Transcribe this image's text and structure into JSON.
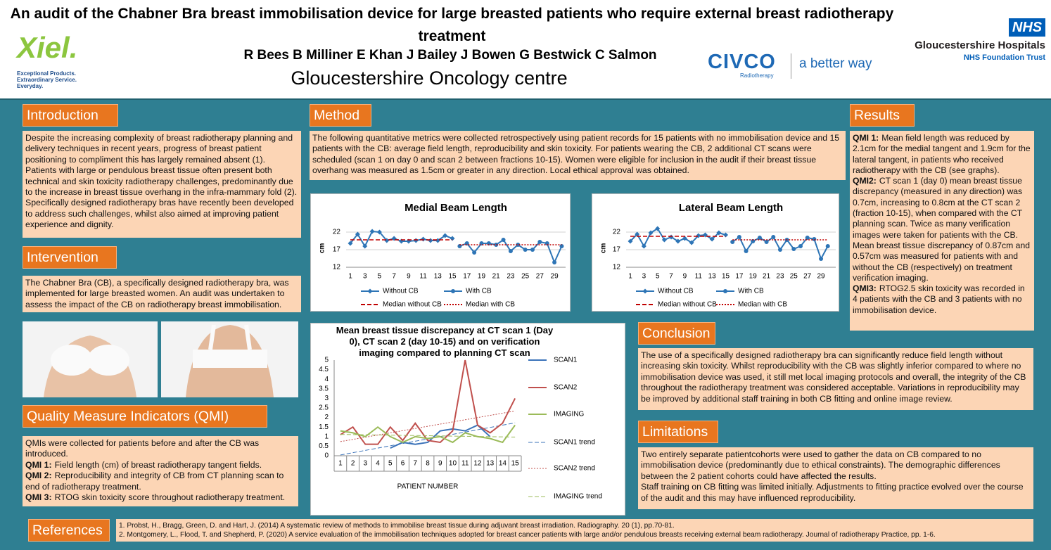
{
  "header": {
    "title": "An audit of the Chabner Bra breast immobilisation device for large breasted patients who require external breast radiotherapy treatment",
    "authors": "R Bees B Milliner E Khan J Bailey J Bowen G Bestwick C Salmon",
    "centre": "Gloucestershire Oncology centre"
  },
  "logos": {
    "xiel": "Xiel.",
    "xiel_tagline": "Exceptional Products. Extraordinary Service. Everyday.",
    "civco": "CIVCO",
    "civco_sub": "Radiotherapy",
    "civco_slogan": "a better way",
    "nhs": "NHS",
    "trust": "Gloucestershire Hospitals",
    "trust_sub": "NHS Foundation Trust"
  },
  "introduction": {
    "heading": "Introduction",
    "text": "Despite the increasing complexity of breast radiotherapy planning and delivery techniques in recent years, progress of breast patient positioning to compliment this has largely remained absent (1). Patients with large or pendulous breast tissue often present both technical and skin toxicity radiotherapy challenges, predominantly due to the increase in breast tissue overhang in the infra-mammary fold (2). Specifically designed radiotherapy bras have recently been developed to address such challenges, whilst also aimed at improving patient experience and dignity."
  },
  "intervention": {
    "heading": "Intervention",
    "text": "The Chabner Bra (CB), a specifically designed radiotherapy bra, was implemented for large breasted women. An audit was undertaken to assess the impact of the CB on radiotherapy breast immobilisation."
  },
  "qmi": {
    "heading": "Quality Measure Indicators (QMI)",
    "intro": "QMIs were collected for patients before and after the CB was introduced.",
    "items": [
      {
        "label": "QMI 1:",
        "text": "Field length (cm) of breast radiotherapy tangent fields."
      },
      {
        "label": "QMI 2:",
        "text": "Reproducibility and integrity of CB from CT planning scan to end of radiotherapy treatment."
      },
      {
        "label": "QMI 3:",
        "text": "RTOG skin toxicity score throughout radiotherapy treatment."
      }
    ]
  },
  "references": {
    "heading": "References",
    "items": [
      "1. Probst, H., Bragg, Green, D. and Hart, J. (2014) A systematic review of methods to immobilise breast tissue during adjuvant breast irradiation. Radiography. 20 (1), pp.70-81.",
      "2. Montgomery, L., Flood, T. and Shepherd, P. (2020) A service evaluation of the immobilisation techniques adopted for breast cancer patients with large and/or pendulous breasts receiving external beam radiotherapy. Journal of radiotherapy Practice, pp. 1-6."
    ]
  },
  "method": {
    "heading": "Method",
    "text": "The following quantitative metrics were collected retrospectively using patient records for 15 patients with no immobilisation device and 15 patients with the CB: average field length, reproducibility and skin toxicity. For patients wearing the CB, 2 additional CT scans were scheduled (scan 1 on day 0 and scan 2 between fractions 10-15). Women were eligible for inclusion in the audit if their breast tissue overhang was measured as 1.5cm or greater in any direction. Local ethical approval was obtained."
  },
  "results": {
    "heading": "Results",
    "items": [
      {
        "label": "QMI 1:",
        "text": "Mean field length was reduced by 2.1cm for the medial tangent and 1.9cm for the lateral tangent, in  patients who received radiotherapy with the CB (see graphs)."
      },
      {
        "label": "QMI2:",
        "text": "CT scan 1 (day 0) mean breast tissue discrepancy (measured in any direction) was 0.7cm, increasing to 0.8cm at the CT scan 2 (fraction 10-15), when compared with the CT planning scan. Twice as many verification images were taken for patients with the CB. Mean breast tissue discrepancy of 0.87cm and 0.57cm was measured for patients with and without the CB (respectively) on treatment verification imaging."
      },
      {
        "label": "QMI3:",
        "text": "RTOG2.5 skin toxicity was recorded in 4 patients with the CB and 3 patients with no immobilisation  device."
      }
    ]
  },
  "conclusion": {
    "heading": "Conclusion",
    "text": "The use of a specifically designed radiotherapy bra can significantly reduce field length without increasing skin toxicity. Whilst reproducibility with the CB was slightly inferior compared to where no immobilisation device was used, it still met local imaging protocols and overall, the integrity of the CB throughout the radiotherapy treatment was considered acceptable. Variations in reproducibility may be improved by additional staff training in both CB fitting and online image review."
  },
  "limitations": {
    "heading": "Limitations",
    "paragraphs": [
      "Two entirely separate  patientcohorts were used to gather the data on CB compared to no immobilisation device (predominantly due to ethical constraints). The demographic differences between the 2 patient cohorts could have affected the results.",
      "Staff training on CB fitting was limited initially. Adjustments to fitting practice evolved over the course of the audit and this may have influenced reproducibility."
    ]
  },
  "chart_data": [
    {
      "type": "line",
      "title": "Medial Beam Length",
      "ylabel": "cm",
      "ylim": [
        12,
        24
      ],
      "yticks": [
        12,
        17,
        22
      ],
      "grid": true,
      "categories": [
        1,
        null,
        3,
        null,
        5,
        null,
        7,
        null,
        9,
        null,
        11,
        null,
        13,
        null,
        15,
        null,
        17,
        null,
        19,
        null,
        21,
        null,
        23,
        null,
        25,
        null,
        27,
        null,
        29,
        null
      ],
      "series": [
        {
          "name": "Without CB",
          "color": "#2e75b6",
          "marker": "diamond",
          "dash": "solid",
          "values": [
            18.8,
            21.4,
            18,
            22.2,
            22,
            19.6,
            20.2,
            19.4,
            19.4,
            19.6,
            20,
            19.6,
            19.6,
            21,
            20.2,
            null,
            null,
            null,
            null,
            null,
            null,
            null,
            null,
            null,
            null,
            null,
            null,
            null,
            null,
            null
          ]
        },
        {
          "name": "With CB",
          "color": "#2e75b6",
          "marker": "circle",
          "dash": "solid",
          "values": [
            null,
            null,
            null,
            null,
            null,
            null,
            null,
            null,
            null,
            null,
            null,
            null,
            null,
            null,
            null,
            18,
            18.8,
            16.2,
            18.8,
            18.8,
            18.4,
            19.8,
            16.6,
            18.4,
            17,
            17,
            19.2,
            18.8,
            13.4,
            18
          ]
        },
        {
          "name": "Median without CB",
          "color": "#c00000",
          "marker": "none",
          "dash": "dashed",
          "values": [
            19.8,
            19.8,
            19.8,
            19.8,
            19.8,
            19.8,
            19.8,
            19.8,
            19.8,
            19.8,
            19.8,
            19.8,
            19.8,
            19.8,
            19.8,
            null,
            null,
            null,
            null,
            null,
            null,
            null,
            null,
            null,
            null,
            null,
            null,
            null,
            null,
            null
          ]
        },
        {
          "name": "Median with CB",
          "color": "#c00000",
          "marker": "none",
          "dash": "dotted",
          "values": [
            null,
            null,
            null,
            null,
            null,
            null,
            null,
            null,
            null,
            null,
            null,
            null,
            null,
            null,
            null,
            18.4,
            18.4,
            18.4,
            18.4,
            18.4,
            18.4,
            18.4,
            18.4,
            18.4,
            18.4,
            18.4,
            18.4,
            18.4,
            18.4,
            18.4
          ]
        }
      ]
    },
    {
      "type": "line",
      "title": "Lateral Beam Length",
      "ylabel": "cm",
      "ylim": [
        12,
        24
      ],
      "yticks": [
        12,
        17,
        22
      ],
      "grid": true,
      "categories": [
        1,
        null,
        3,
        null,
        5,
        null,
        7,
        null,
        9,
        null,
        11,
        null,
        13,
        null,
        15,
        null,
        17,
        null,
        19,
        null,
        21,
        null,
        23,
        null,
        25,
        null,
        27,
        null,
        29,
        null
      ],
      "series": [
        {
          "name": "Without CB",
          "color": "#2e75b6",
          "marker": "diamond",
          "dash": "solid",
          "values": [
            19.4,
            21.4,
            18,
            21.8,
            23,
            19.8,
            20.6,
            19.4,
            20.2,
            19,
            21,
            21.2,
            20,
            21.8,
            21.2,
            null,
            null,
            null,
            null,
            null,
            null,
            null,
            null,
            null,
            null,
            null,
            null,
            null,
            null,
            null
          ]
        },
        {
          "name": "With CB",
          "color": "#2e75b6",
          "marker": "circle",
          "dash": "solid",
          "values": [
            null,
            null,
            null,
            null,
            null,
            null,
            null,
            null,
            null,
            null,
            null,
            null,
            null,
            null,
            null,
            19.2,
            20.6,
            16.6,
            19.4,
            20.4,
            19.2,
            20.6,
            17,
            19.8,
            17.2,
            18,
            20.4,
            20,
            14.4,
            18
          ]
        },
        {
          "name": "Median without CB",
          "color": "#c00000",
          "marker": "none",
          "dash": "dashed",
          "values": [
            20.8,
            20.8,
            20.8,
            20.8,
            20.8,
            20.8,
            20.8,
            20.8,
            20.8,
            20.8,
            20.8,
            20.8,
            20.8,
            20.8,
            20.8,
            null,
            null,
            null,
            null,
            null,
            null,
            null,
            null,
            null,
            null,
            null,
            null,
            null,
            null,
            null
          ]
        },
        {
          "name": "Median with CB",
          "color": "#c00000",
          "marker": "none",
          "dash": "dotted",
          "values": [
            null,
            null,
            null,
            null,
            null,
            null,
            null,
            null,
            null,
            null,
            null,
            null,
            null,
            null,
            null,
            19.8,
            19.8,
            19.8,
            19.8,
            19.8,
            19.8,
            19.8,
            19.8,
            19.8,
            19.8,
            19.8,
            19.8,
            19.8,
            19.8,
            19.8
          ]
        }
      ]
    },
    {
      "type": "line",
      "title": "Mean breast tissue discrepancy at CT scan 1 (Day 0), CT scan 2 (day 10-15) and on verification imaging compared to planning CT scan",
      "xlabel": "PATIENT NUMBER",
      "ylim": [
        0,
        5
      ],
      "yticks": [
        0,
        0.5,
        1,
        1.5,
        2,
        2.5,
        3,
        3.5,
        4,
        4.5,
        5
      ],
      "grid": false,
      "categories": [
        1,
        2,
        3,
        4,
        5,
        6,
        7,
        8,
        9,
        10,
        11,
        12,
        13,
        14,
        15
      ],
      "series": [
        {
          "name": "SCAN1",
          "color": "#3b73b9",
          "marker": "none",
          "dash": "solid",
          "trend_name": "SCAN1 trend",
          "trend_dash": "dashed",
          "values": [
            null,
            null,
            null,
            null,
            0.4,
            0.7,
            0.6,
            0.7,
            1.3,
            1.4,
            1.3,
            1.6,
            1.0,
            null,
            null
          ]
        },
        {
          "name": "SCAN2",
          "color": "#c0504d",
          "marker": "none",
          "dash": "solid",
          "trend_name": "SCAN2 trend",
          "trend_dash": "dotted",
          "values": [
            1.1,
            1.5,
            0.6,
            0.6,
            1.5,
            0.8,
            1.7,
            0.8,
            0.7,
            1.3,
            5,
            1.6,
            1.2,
            1.7,
            3
          ]
        },
        {
          "name": "IMAGING",
          "color": "#9bbb59",
          "marker": "none",
          "dash": "solid",
          "trend_name": "IMAGING trend",
          "trend_dash": "dashed",
          "values": [
            1.3,
            1.2,
            1.0,
            1.5,
            1.0,
            0.7,
            1.0,
            0.9,
            1.0,
            0.7,
            1.2,
            1.0,
            0.9,
            0.7,
            1.6
          ]
        }
      ]
    }
  ]
}
